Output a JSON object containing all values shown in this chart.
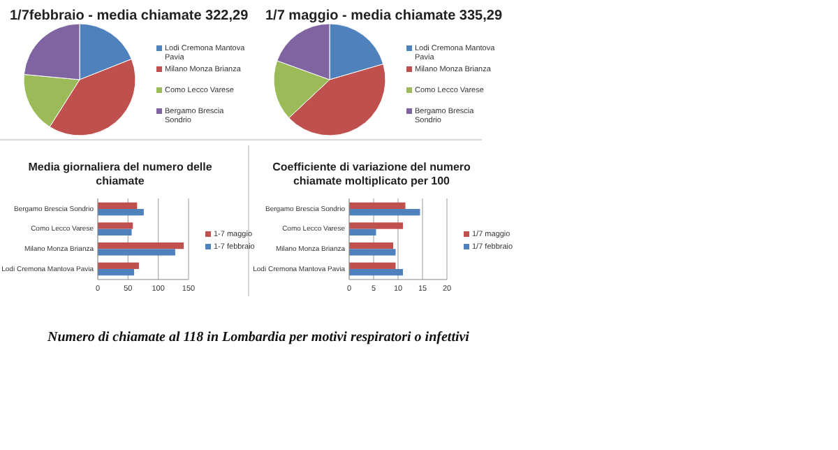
{
  "chart_data": [
    {
      "type": "pie",
      "title": "1/7febbraio - media chiamate 322,29",
      "categories": [
        "Lodi Cremona Mantova Pavia",
        "Milano Monza Brianza",
        "Como Lecco Varese",
        "Bergamo Brescia Sondrio"
      ],
      "values": [
        19,
        40,
        17.5,
        23.5
      ],
      "colors": [
        "#4f81bd",
        "#c0504d",
        "#9bbb59",
        "#8064a2"
      ],
      "legend": "right"
    },
    {
      "type": "pie",
      "title": "1/7 maggio - media chiamate 335,29",
      "categories": [
        "Lodi Cremona Mantova Pavia",
        "Milano Monza Brianza",
        "Como Lecco Varese",
        "Bergamo Brescia Sondrio"
      ],
      "values": [
        20.5,
        42.5,
        17.5,
        19.5
      ],
      "colors": [
        "#4f81bd",
        "#c0504d",
        "#9bbb59",
        "#8064a2"
      ],
      "legend": "right"
    },
    {
      "type": "bar",
      "orientation": "horizontal",
      "title": "Media giornaliera del numero delle chiamate",
      "categories": [
        "Bergamo Brescia Sondrio",
        "Como Lecco Varese",
        "Milano Monza Brianza",
        "Lodi Cremona Mantova Pavia"
      ],
      "series": [
        {
          "name": "1-7 maggio",
          "color": "#c0504d",
          "values": [
            65,
            58,
            142,
            68
          ]
        },
        {
          "name": "1-7 febbraio",
          "color": "#4f81bd",
          "values": [
            76,
            56,
            128,
            60
          ]
        }
      ],
      "xlim": [
        0,
        150
      ],
      "xticks": [
        0,
        50,
        100,
        150
      ],
      "grid": "x",
      "legend": "right"
    },
    {
      "type": "bar",
      "orientation": "horizontal",
      "title": "Coefficiente di variazione del numero chiamate moltiplicato per 100",
      "categories": [
        "Bergamo Brescia Sondrio",
        "Como Lecco Varese",
        "Milano Monza Brianza",
        "Lodi Cremona Mantova Pavia"
      ],
      "series": [
        {
          "name": "1/7 maggio",
          "color": "#c0504d",
          "values": [
            11.5,
            11,
            9,
            9.5
          ]
        },
        {
          "name": "1/7 febbraio",
          "color": "#4f81bd",
          "values": [
            14.5,
            5.5,
            9.5,
            11
          ]
        }
      ],
      "xlim": [
        0,
        20
      ],
      "xticks": [
        0,
        5,
        10,
        15,
        20
      ],
      "grid": "x",
      "legend": "right",
      "annotations": [
        "Numero di chiamate al 118 in Lombardia per motivi respiratori o infettivi"
      ]
    }
  ]
}
